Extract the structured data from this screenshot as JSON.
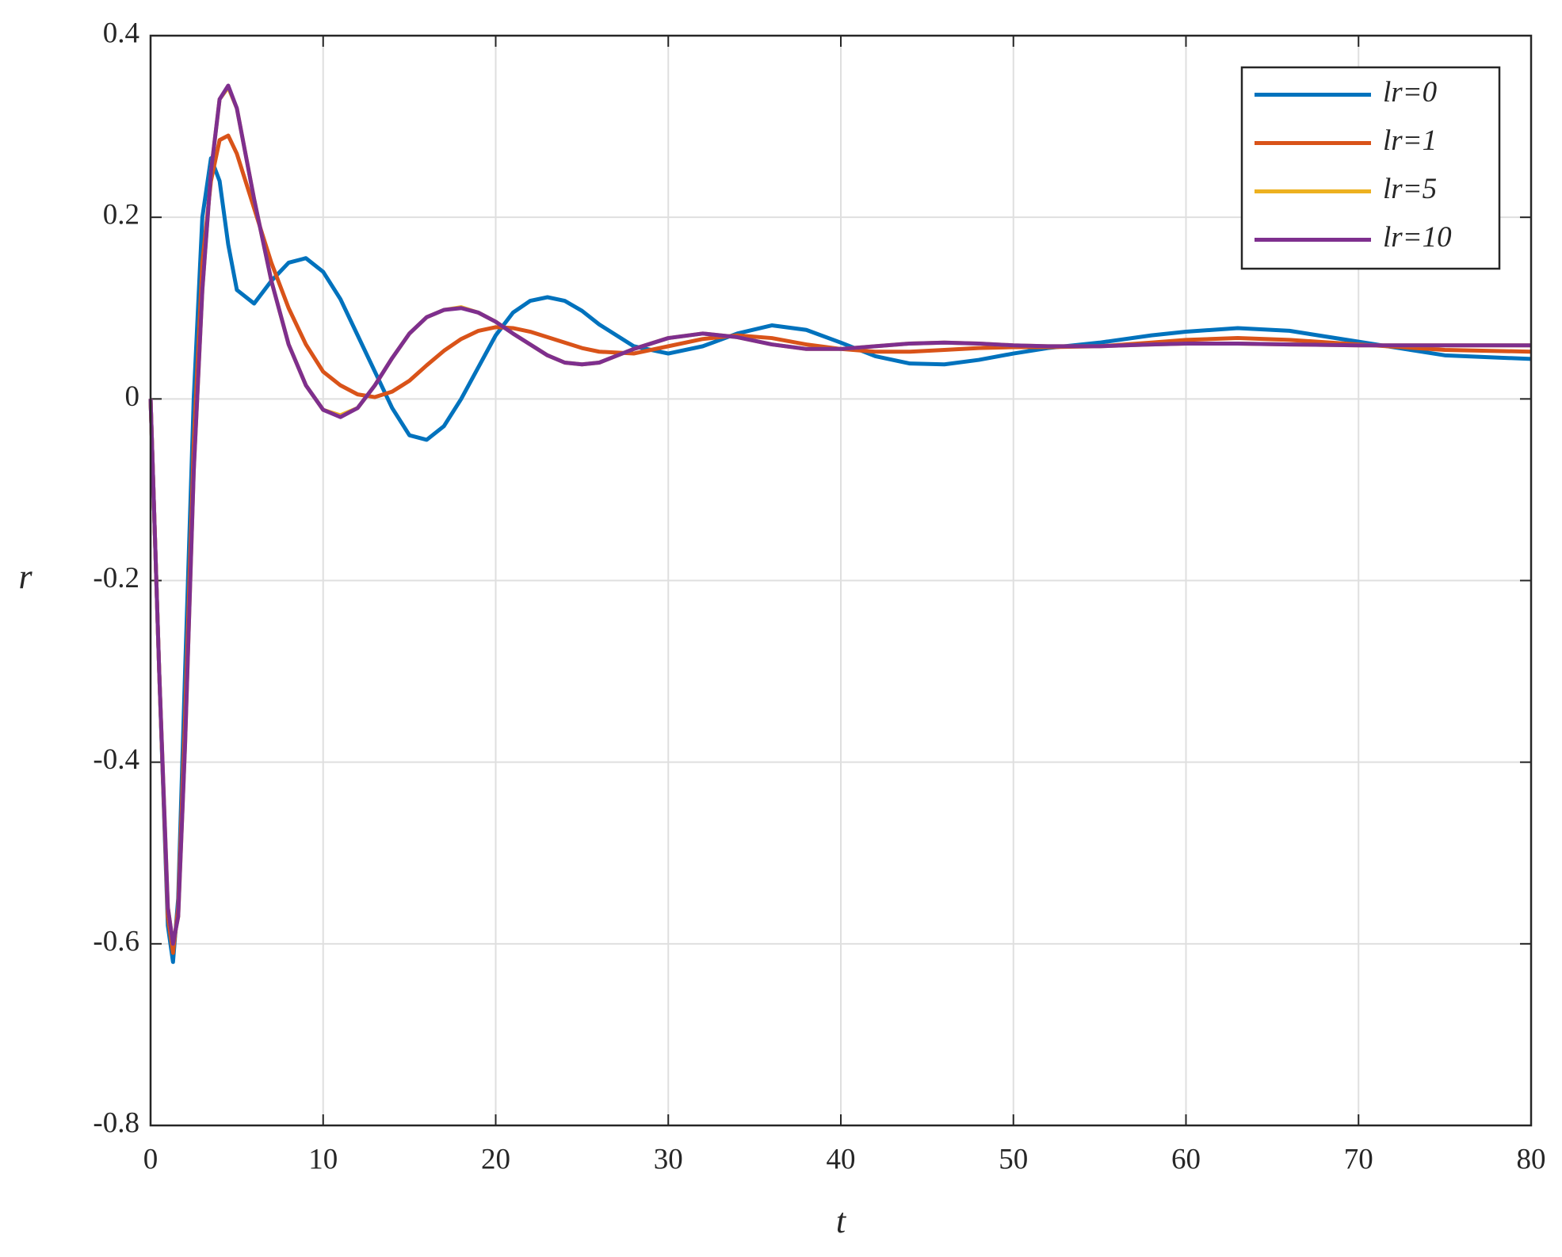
{
  "chart_data": {
    "type": "line",
    "xlabel": "t",
    "ylabel": "r",
    "xlim": [
      0,
      80
    ],
    "ylim": [
      -0.8,
      0.4
    ],
    "xticks": [
      0,
      10,
      20,
      30,
      40,
      50,
      60,
      70,
      80
    ],
    "yticks": [
      -0.8,
      -0.6,
      -0.4,
      -0.2,
      0,
      0.2,
      0.4
    ],
    "grid": true,
    "legend": "upper right",
    "x": [
      0,
      0.5,
      1,
      1.3,
      1.6,
      2,
      2.5,
      3,
      3.5,
      4,
      4.5,
      5,
      6,
      7,
      8,
      9,
      10,
      11,
      12,
      13,
      14,
      15,
      16,
      17,
      18,
      19,
      20,
      21,
      22,
      23,
      24,
      25,
      26,
      28,
      30,
      32,
      34,
      36,
      38,
      40,
      42,
      44,
      46,
      48,
      50,
      52,
      55,
      58,
      60,
      63,
      66,
      70,
      75,
      80
    ],
    "series": [
      {
        "name": "lr=0",
        "color": "#0072bd",
        "values": [
          0,
          -0.3,
          -0.58,
          -0.62,
          -0.55,
          -0.3,
          0,
          0.2,
          0.265,
          0.24,
          0.17,
          0.12,
          0.105,
          0.13,
          0.15,
          0.155,
          0.14,
          0.11,
          0.07,
          0.03,
          -0.01,
          -0.04,
          -0.045,
          -0.03,
          0,
          0.035,
          0.07,
          0.095,
          0.108,
          0.112,
          0.108,
          0.097,
          0.082,
          0.058,
          0.05,
          0.058,
          0.072,
          0.081,
          0.076,
          0.062,
          0.047,
          0.039,
          0.038,
          0.043,
          0.05,
          0.056,
          0.062,
          0.07,
          0.074,
          0.078,
          0.075,
          0.063,
          0.048,
          0.044
        ]
      },
      {
        "name": "lr=1",
        "color": "#d95319",
        "values": [
          0,
          -0.3,
          -0.57,
          -0.61,
          -0.56,
          -0.35,
          -0.05,
          0.15,
          0.24,
          0.285,
          0.29,
          0.27,
          0.21,
          0.15,
          0.1,
          0.06,
          0.03,
          0.015,
          0.005,
          0.002,
          0.008,
          0.02,
          0.037,
          0.053,
          0.066,
          0.075,
          0.079,
          0.078,
          0.074,
          0.068,
          0.062,
          0.056,
          0.052,
          0.05,
          0.058,
          0.066,
          0.07,
          0.067,
          0.06,
          0.055,
          0.052,
          0.052,
          0.054,
          0.056,
          0.057,
          0.057,
          0.058,
          0.062,
          0.065,
          0.067,
          0.065,
          0.06,
          0.054,
          0.052
        ]
      },
      {
        "name": "lr=5",
        "color": "#edb120",
        "values": [
          0,
          -0.3,
          -0.56,
          -0.6,
          -0.57,
          -0.38,
          -0.08,
          0.12,
          0.25,
          0.33,
          0.343,
          0.32,
          0.22,
          0.13,
          0.06,
          0.015,
          -0.012,
          -0.018,
          -0.01,
          0.015,
          0.045,
          0.072,
          0.09,
          0.098,
          0.101,
          0.095,
          0.085,
          0.072,
          0.06,
          0.048,
          0.04,
          0.038,
          0.04,
          0.055,
          0.067,
          0.072,
          0.068,
          0.06,
          0.055,
          0.055,
          0.058,
          0.061,
          0.062,
          0.061,
          0.059,
          0.058,
          0.058,
          0.06,
          0.061,
          0.061,
          0.06,
          0.059,
          0.059,
          0.059
        ]
      },
      {
        "name": "lr=10",
        "color": "#7e2f8e",
        "values": [
          0,
          -0.3,
          -0.56,
          -0.6,
          -0.57,
          -0.38,
          -0.08,
          0.12,
          0.25,
          0.33,
          0.345,
          0.32,
          0.22,
          0.13,
          0.06,
          0.015,
          -0.012,
          -0.02,
          -0.01,
          0.015,
          0.045,
          0.072,
          0.09,
          0.098,
          0.1,
          0.095,
          0.085,
          0.072,
          0.06,
          0.048,
          0.04,
          0.038,
          0.04,
          0.055,
          0.067,
          0.072,
          0.068,
          0.06,
          0.055,
          0.055,
          0.058,
          0.061,
          0.062,
          0.061,
          0.059,
          0.058,
          0.058,
          0.06,
          0.061,
          0.061,
          0.06,
          0.059,
          0.059,
          0.059
        ]
      }
    ]
  }
}
